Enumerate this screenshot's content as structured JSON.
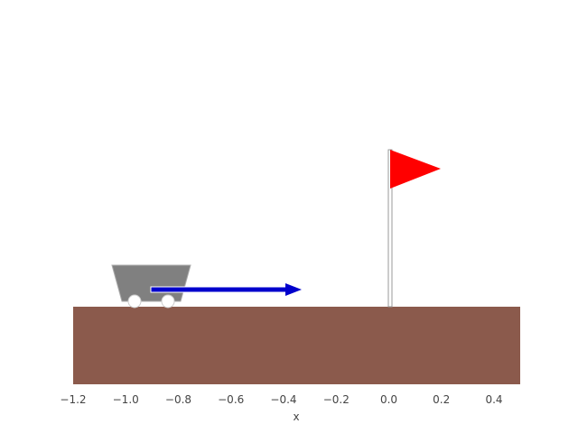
{
  "scene": {
    "x_axis": {
      "label": "x",
      "ticks": [
        {
          "value": -1.2,
          "label": "−1.2"
        },
        {
          "value": -1.0,
          "label": "−1.0"
        },
        {
          "value": -0.8,
          "label": "−0.8"
        },
        {
          "value": -0.6,
          "label": "−0.6"
        },
        {
          "value": -0.4,
          "label": "−0.4"
        },
        {
          "value": -0.2,
          "label": "−0.2"
        },
        {
          "value": 0.0,
          "label": "0.0"
        },
        {
          "value": 0.2,
          "label": "0.2"
        },
        {
          "value": 0.4,
          "label": "0.4"
        }
      ],
      "range": [
        -1.2,
        0.5
      ]
    },
    "cart": {
      "position": -0.97,
      "color": "#808080",
      "wheel_color": "#ffffff"
    },
    "force_arrow": {
      "from": -0.92,
      "to": -0.33,
      "color": "#0000cc"
    },
    "goal_flag": {
      "position": 0.0,
      "color": "#ff0000"
    },
    "ground": {
      "color": "#8b5a4c"
    }
  }
}
